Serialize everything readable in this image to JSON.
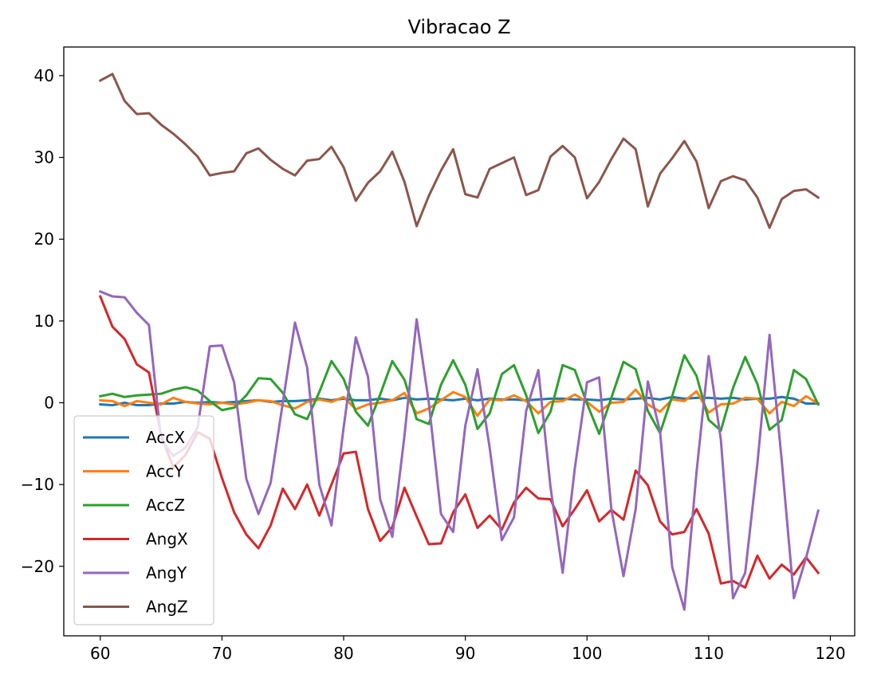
{
  "chart_data": {
    "type": "line",
    "title": "Vibracao Z",
    "xlabel": "",
    "ylabel": "",
    "xlim": [
      57,
      122
    ],
    "ylim": [
      -28.5,
      43.5
    ],
    "xticks": [
      60,
      70,
      80,
      90,
      100,
      110,
      120
    ],
    "yticks": [
      -20,
      -10,
      0,
      10,
      20,
      30,
      40
    ],
    "grid": false,
    "legend_position": "lower-left",
    "x": [
      60,
      61,
      62,
      63,
      64,
      65,
      66,
      67,
      68,
      69,
      70,
      71,
      72,
      73,
      74,
      75,
      76,
      77,
      78,
      79,
      80,
      81,
      82,
      83,
      84,
      85,
      86,
      87,
      88,
      89,
      90,
      91,
      92,
      93,
      94,
      95,
      96,
      97,
      98,
      99,
      100,
      101,
      102,
      103,
      104,
      105,
      106,
      107,
      108,
      109,
      110,
      111,
      112,
      113,
      114,
      115,
      116,
      117,
      118,
      119
    ],
    "series": [
      {
        "name": "AccX",
        "color": "#1f77b4",
        "values": [
          -0.2,
          -0.3,
          0.0,
          -0.3,
          -0.3,
          -0.1,
          -0.1,
          0.1,
          0.0,
          0.1,
          0.0,
          0.1,
          0.2,
          0.3,
          0.1,
          0.2,
          0.2,
          0.3,
          0.5,
          0.3,
          0.5,
          0.3,
          0.3,
          0.5,
          0.3,
          0.6,
          0.4,
          0.5,
          0.4,
          0.3,
          0.5,
          0.3,
          0.5,
          0.4,
          0.4,
          0.3,
          0.4,
          0.5,
          0.5,
          0.4,
          0.4,
          0.3,
          0.5,
          0.4,
          0.5,
          0.6,
          0.4,
          0.7,
          0.5,
          0.6,
          0.6,
          0.5,
          0.6,
          0.4,
          0.5,
          0.5,
          0.7,
          0.5,
          -0.1,
          -0.1
        ]
      },
      {
        "name": "AccY",
        "color": "#ff7f0e",
        "values": [
          0.3,
          0.2,
          -0.4,
          0.2,
          0.0,
          -0.2,
          0.6,
          0.1,
          -0.1,
          -0.2,
          0.0,
          -0.2,
          0.0,
          0.3,
          0.2,
          -0.3,
          -0.7,
          0.1,
          0.4,
          0.1,
          0.7,
          -0.8,
          -0.2,
          0.0,
          0.3,
          1.2,
          -1.3,
          -0.7,
          0.3,
          1.3,
          0.7,
          -1.6,
          0.4,
          0.3,
          0.9,
          0.2,
          -1.3,
          0.1,
          0.2,
          1.0,
          0.1,
          -1.1,
          0.0,
          0.1,
          1.6,
          -0.2,
          -1.1,
          0.4,
          0.2,
          1.4,
          -1.2,
          -0.2,
          -0.1,
          0.6,
          0.5,
          -1.3,
          0.1,
          -0.4,
          0.8,
          -0.1
        ]
      },
      {
        "name": "AccZ",
        "color": "#2ca02c",
        "values": [
          0.8,
          1.1,
          0.7,
          0.9,
          1.0,
          1.1,
          1.6,
          1.9,
          1.5,
          0.2,
          -0.9,
          -0.6,
          0.9,
          3.0,
          2.9,
          1.2,
          -1.4,
          -2.0,
          1.3,
          5.1,
          2.9,
          -1.1,
          -2.8,
          1.0,
          5.1,
          2.8,
          -2.0,
          -2.6,
          2.2,
          5.2,
          2.2,
          -3.2,
          -1.3,
          3.5,
          4.6,
          0.9,
          -3.7,
          -1.1,
          4.6,
          4.0,
          -0.1,
          -3.8,
          0.6,
          5.0,
          4.1,
          -1.0,
          -3.7,
          0.8,
          5.8,
          3.3,
          -2.1,
          -3.4,
          1.8,
          5.6,
          2.3,
          -3.3,
          -2.1,
          4.0,
          2.9,
          -0.2
        ]
      },
      {
        "name": "AngX",
        "color": "#d62728",
        "values": [
          13.0,
          9.3,
          7.8,
          4.7,
          3.7,
          -4.0,
          -7.9,
          -6.4,
          -3.6,
          -4.4,
          -9.2,
          -13.4,
          -16.1,
          -17.8,
          -15.0,
          -10.5,
          -13.0,
          -10.0,
          -13.8,
          -10.0,
          -6.2,
          -6.0,
          -13.0,
          -16.9,
          -15.2,
          -10.4,
          -13.9,
          -17.3,
          -17.2,
          -13.4,
          -11.2,
          -15.3,
          -13.8,
          -15.5,
          -12.2,
          -10.4,
          -11.7,
          -11.8,
          -15.1,
          -13.0,
          -10.7,
          -14.5,
          -13.1,
          -14.3,
          -8.3,
          -10.1,
          -14.5,
          -16.1,
          -15.8,
          -13.0,
          -16.0,
          -22.1,
          -21.8,
          -22.6,
          -18.7,
          -21.5,
          -19.8,
          -21.0,
          -18.9,
          -20.8
        ]
      },
      {
        "name": "AngY",
        "color": "#9467bd",
        "values": [
          13.6,
          13.0,
          12.9,
          11.0,
          9.5,
          -4.5,
          -6.5,
          -5.5,
          -3.0,
          6.9,
          7.0,
          2.5,
          -9.3,
          -13.6,
          -9.8,
          0.0,
          9.8,
          4.3,
          -10.0,
          -15.0,
          -3.0,
          8.0,
          3.2,
          -11.8,
          -16.4,
          -4.0,
          10.2,
          0.0,
          -13.6,
          -15.8,
          -2.8,
          4.1,
          -5.5,
          -16.8,
          -14.0,
          -1.0,
          4.0,
          -10.3,
          -20.8,
          -8.0,
          2.5,
          3.1,
          -13.0,
          -21.2,
          -13.0,
          2.6,
          -3.5,
          -20.1,
          -25.3,
          -8.5,
          5.7,
          -4.5,
          -23.9,
          -20.8,
          -7.5,
          8.3,
          -7.0,
          -23.9,
          -19.0,
          -13.2
        ]
      },
      {
        "name": "AngZ",
        "color": "#8c564b",
        "values": [
          39.4,
          40.2,
          36.9,
          35.3,
          35.4,
          34.0,
          32.9,
          31.6,
          30.1,
          27.8,
          28.1,
          28.3,
          30.5,
          31.1,
          29.7,
          28.6,
          27.8,
          29.6,
          29.8,
          31.3,
          28.8,
          24.7,
          26.9,
          28.3,
          30.7,
          27.0,
          21.6,
          25.3,
          28.4,
          31.0,
          25.5,
          25.1,
          28.6,
          29.3,
          30.0,
          25.4,
          26.0,
          30.1,
          31.4,
          30.0,
          25.0,
          27.0,
          29.8,
          32.3,
          31.0,
          24.0,
          28.0,
          29.9,
          32.0,
          29.5,
          23.8,
          27.1,
          27.7,
          27.2,
          25.1,
          21.4,
          24.9,
          25.9,
          26.1,
          25.1
        ]
      }
    ]
  }
}
